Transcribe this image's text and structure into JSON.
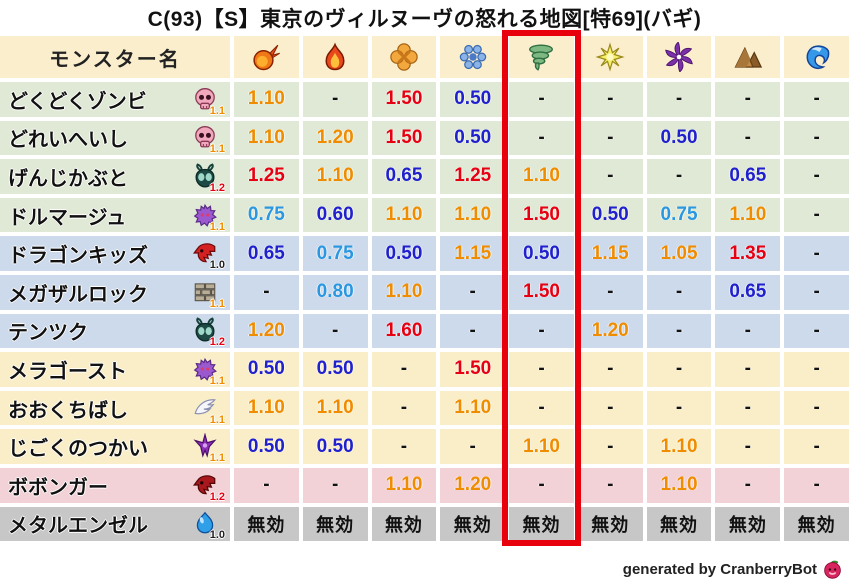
{
  "title": "C(93)【S】東京のヴィルヌーヴの怒れる地図[特69](バギ)",
  "palette": {
    "header_bg": "#faeecd",
    "row_green": "#dfe9d5",
    "row_blue": "#ccdaeb",
    "row_cream": "#faeec9",
    "row_pink": "#f2d2d6",
    "row_gray": "#c7c7c7",
    "value_red": "#e60012",
    "value_orange": "#f08c00",
    "value_darkblue": "#2020cc",
    "value_lightblue": "#2b97e0",
    "value_black": "#111111",
    "rank_10": "#222222",
    "rank_11": "#f08c00",
    "rank_12": "#e60012",
    "highlight_red": "#e8000d"
  },
  "table": {
    "name_header": "モンスター名",
    "element_columns": [
      {
        "icon": "fireball"
      },
      {
        "icon": "flame"
      },
      {
        "icon": "explosion"
      },
      {
        "icon": "snowflake"
      },
      {
        "icon": "tornado"
      },
      {
        "icon": "starburst"
      },
      {
        "icon": "pinwheel"
      },
      {
        "icon": "mountain"
      },
      {
        "icon": "wave"
      }
    ],
    "highlight_column_index": 4,
    "rows": [
      {
        "name": "どくどくゾンビ",
        "icon": "skull",
        "rank": "1.1",
        "tint": "row_green",
        "values": [
          "1.10",
          "-",
          "1.50",
          "0.50",
          "-",
          "-",
          "-",
          "-",
          "-"
        ]
      },
      {
        "name": "どれいへいし",
        "icon": "skull",
        "rank": "1.1",
        "tint": "row_green",
        "values": [
          "1.10",
          "1.20",
          "1.50",
          "0.50",
          "-",
          "-",
          "0.50",
          "-",
          "-"
        ]
      },
      {
        "name": "げんじかぶと",
        "icon": "bug",
        "rank": "1.2",
        "tint": "row_green",
        "values": [
          "1.25",
          "1.10",
          "0.65",
          "1.25",
          "1.10",
          "-",
          "-",
          "0.65",
          "-"
        ]
      },
      {
        "name": "ドルマージュ",
        "icon": "ghost",
        "rank": "1.1",
        "tint": "row_green",
        "values": [
          "0.75",
          "0.60",
          "1.10",
          "1.10",
          "1.50",
          "0.50",
          "0.75",
          "1.10",
          "-"
        ]
      },
      {
        "name": "ドラゴンキッズ",
        "icon": "dragon_red",
        "rank": "1.0",
        "tint": "row_blue",
        "values": [
          "0.65",
          "0.75",
          "0.50",
          "1.15",
          "0.50",
          "1.15",
          "1.05",
          "1.35",
          "-"
        ]
      },
      {
        "name": "メガザルロック",
        "icon": "brick",
        "rank": "1.1",
        "tint": "row_blue",
        "values": [
          "-",
          "0.80",
          "1.10",
          "-",
          "1.50",
          "-",
          "-",
          "0.65",
          "-"
        ]
      },
      {
        "name": "テンツク",
        "icon": "bug",
        "rank": "1.2",
        "tint": "row_blue",
        "values": [
          "1.20",
          "-",
          "1.60",
          "-",
          "-",
          "1.20",
          "-",
          "-",
          "-"
        ]
      },
      {
        "name": "メラゴースト",
        "icon": "ghost",
        "rank": "1.1",
        "tint": "row_cream",
        "values": [
          "0.50",
          "0.50",
          "-",
          "1.50",
          "-",
          "-",
          "-",
          "-",
          "-"
        ]
      },
      {
        "name": "おおくちばし",
        "icon": "wing",
        "rank": "1.1",
        "tint": "row_cream",
        "values": [
          "1.10",
          "1.10",
          "-",
          "1.10",
          "-",
          "-",
          "-",
          "-",
          "-"
        ]
      },
      {
        "name": "じごくのつかい",
        "icon": "trident",
        "rank": "1.1",
        "tint": "row_cream",
        "values": [
          "0.50",
          "0.50",
          "-",
          "-",
          "1.10",
          "-",
          "1.10",
          "-",
          "-"
        ]
      },
      {
        "name": "ボボンガー",
        "icon": "dragon_dark",
        "rank": "1.2",
        "tint": "row_pink",
        "values": [
          "-",
          "-",
          "1.10",
          "1.20",
          "-",
          "-",
          "1.10",
          "-",
          "-"
        ]
      },
      {
        "name": "メタルエンゼル",
        "icon": "slime",
        "rank": "1.0",
        "tint": "row_gray",
        "values": [
          "無効",
          "無効",
          "無効",
          "無効",
          "無効",
          "無効",
          "無効",
          "無効",
          "無効"
        ]
      }
    ]
  },
  "footer": {
    "credit": "generated by CranberryBot"
  }
}
